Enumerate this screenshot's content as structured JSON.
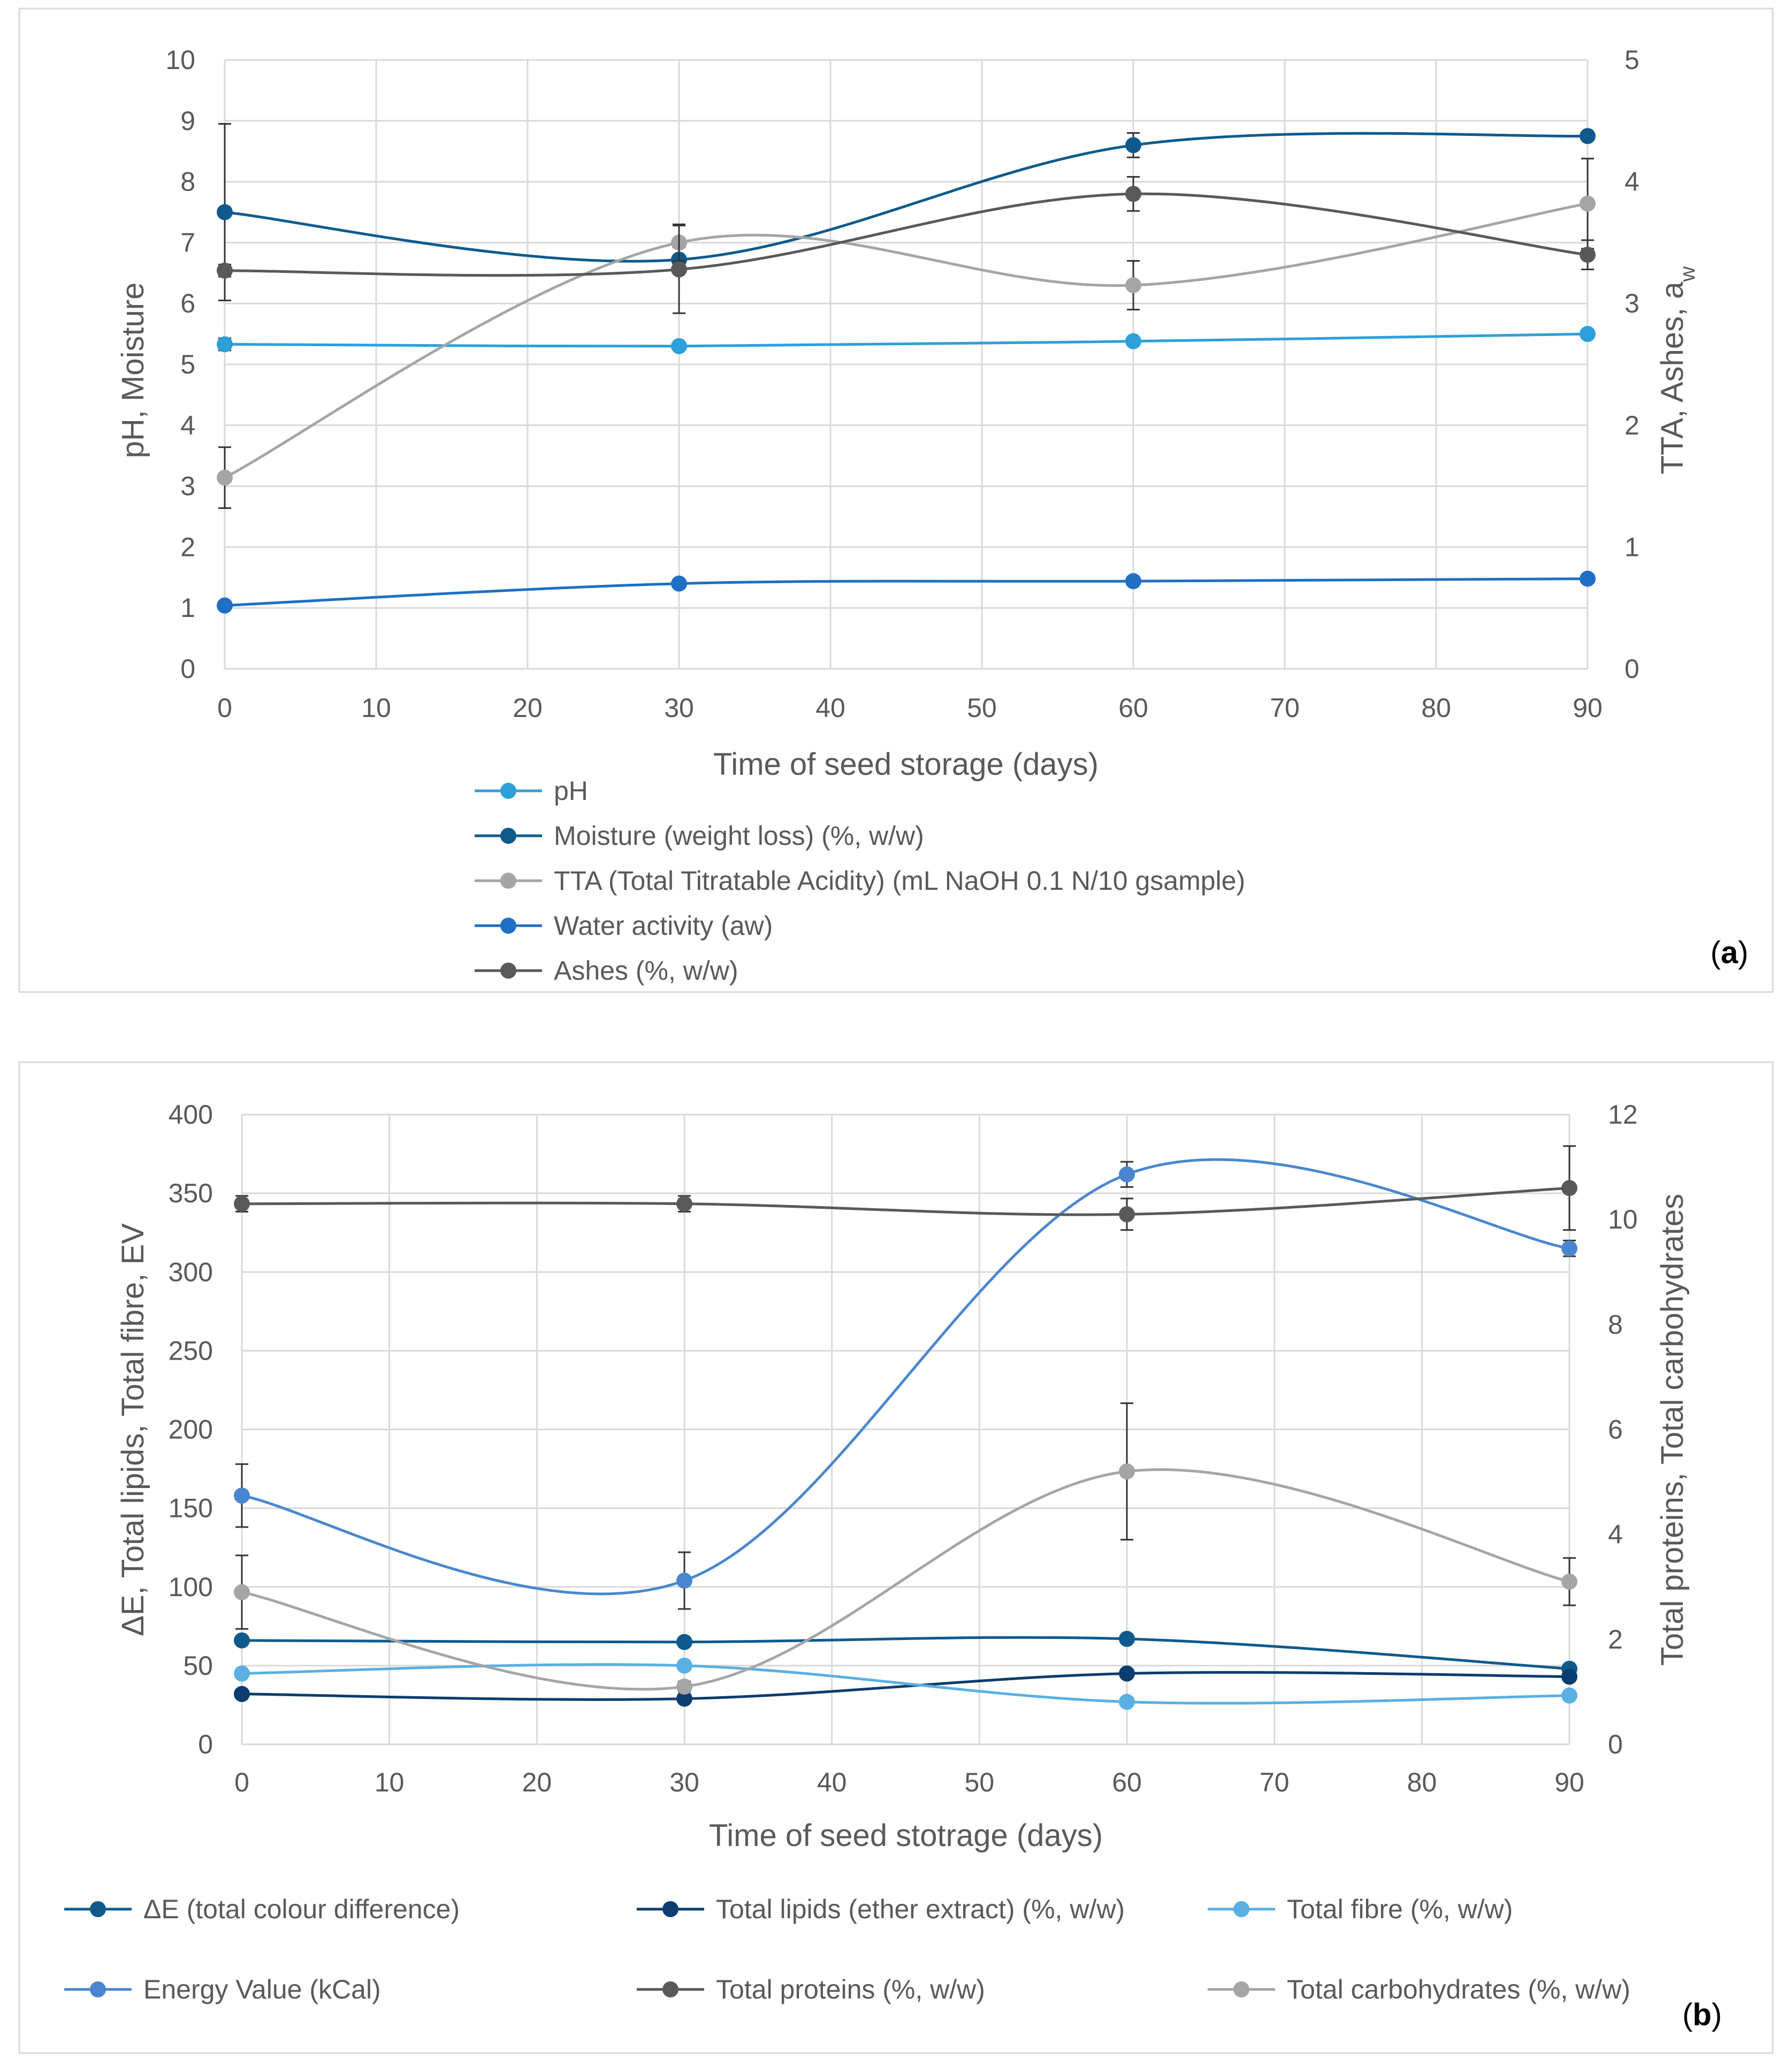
{
  "chart_data": [
    {
      "type": "line",
      "panel": "a",
      "panel_label": "a",
      "xlabel": "Time of seed storage (days)",
      "ylabel_left": "pH, Moisture",
      "ylabel_right": "TTA, Ashes, a",
      "ylabel_right_sub": "w",
      "xlim": [
        0,
        90
      ],
      "xticks": [
        0,
        10,
        20,
        30,
        40,
        50,
        60,
        70,
        80,
        90
      ],
      "ylim_left": [
        0,
        10
      ],
      "yticks_left": [
        0,
        1,
        2,
        3,
        4,
        5,
        6,
        7,
        8,
        9,
        10
      ],
      "ylim_right": [
        0,
        5
      ],
      "yticks_right": [
        0,
        1,
        2,
        3,
        4,
        5
      ],
      "grid": true,
      "legend_position": "bottom",
      "x": [
        0,
        30,
        60,
        90
      ],
      "series": [
        {
          "name": "pH",
          "axis": "left",
          "color": "#2e9fd8",
          "values": [
            5.33,
            5.3,
            5.38,
            5.5
          ],
          "err": [
            0.1,
            0.05,
            0.05,
            0.05
          ]
        },
        {
          "name": "Moisture (weight loss) (%, w/w)",
          "axis": "left",
          "color": "#0f5a8c",
          "values": [
            7.5,
            6.72,
            8.6,
            8.75
          ],
          "err": [
            1.45,
            0.2,
            0.2,
            0.05
          ]
        },
        {
          "name": "TTA (Total Titratable Acidity) (mL NaOH 0.1 N/10 gsample)",
          "axis": "right",
          "color": "#a5a5a5",
          "values": [
            1.57,
            3.5,
            3.15,
            3.82
          ],
          "err": [
            0.25,
            0.15,
            0.2,
            0.37
          ]
        },
        {
          "name": "Water activity (aw)",
          "axis": "right",
          "color": "#1f6fc4",
          "values": [
            0.52,
            0.7,
            0.72,
            0.74
          ],
          "err": [
            0.01,
            0.01,
            0.01,
            0.01
          ]
        },
        {
          "name": "Ashes (%, w/w)",
          "axis": "right",
          "color": "#595959",
          "values": [
            3.27,
            3.28,
            3.9,
            3.4
          ],
          "err": [
            0.05,
            0.36,
            0.14,
            0.12
          ]
        }
      ]
    },
    {
      "type": "line",
      "panel": "b",
      "panel_label": "b",
      "xlabel": "Time of seed stotrage (days)",
      "ylabel_left": "ΔE, Total lipids, Total fibre, EV",
      "ylabel_right": "Total proteins, Total carbohydrates",
      "xlim": [
        0,
        90
      ],
      "xticks": [
        0,
        10,
        20,
        30,
        40,
        50,
        60,
        70,
        80,
        90
      ],
      "ylim_left": [
        0,
        400
      ],
      "yticks_left": [
        0,
        50,
        100,
        150,
        200,
        250,
        300,
        350,
        400
      ],
      "ylim_right": [
        0,
        12
      ],
      "yticks_right": [
        0,
        2,
        4,
        6,
        8,
        10,
        12
      ],
      "grid": true,
      "legend_position": "bottom",
      "x": [
        0,
        30,
        60,
        90
      ],
      "series": [
        {
          "name": "ΔE (total colour difference)",
          "axis": "left",
          "color": "#0f5a8c",
          "values": [
            66,
            65,
            67,
            48
          ],
          "err": [
            1,
            1,
            1,
            1
          ]
        },
        {
          "name": "Total lipids (ether extract) (%, w/w)",
          "axis": "left",
          "color": "#0b3d6e",
          "values": [
            32,
            29,
            45,
            43
          ],
          "err": [
            1,
            1,
            1,
            1
          ]
        },
        {
          "name": "Total fibre (%, w/w)",
          "axis": "left",
          "color": "#5ab0e3",
          "values": [
            45,
            50,
            27,
            31
          ],
          "err": [
            1,
            1,
            1,
            1
          ]
        },
        {
          "name": "Energy Value (kCal)",
          "axis": "left",
          "color": "#4a86cf",
          "values": [
            158,
            104,
            362,
            315
          ],
          "err": [
            20,
            18,
            8,
            5
          ]
        },
        {
          "name": "Total proteins (%, w/w)",
          "axis": "right",
          "color": "#595959",
          "values": [
            10.3,
            10.3,
            10.1,
            10.6
          ],
          "err": [
            0.15,
            0.15,
            0.3,
            0.8
          ]
        },
        {
          "name": "Total carbohydrates (%, w/w)",
          "axis": "right",
          "color": "#a5a5a5",
          "values": [
            2.9,
            1.1,
            5.2,
            3.1
          ],
          "err": [
            0.7,
            0.1,
            1.3,
            0.45
          ]
        }
      ]
    }
  ]
}
